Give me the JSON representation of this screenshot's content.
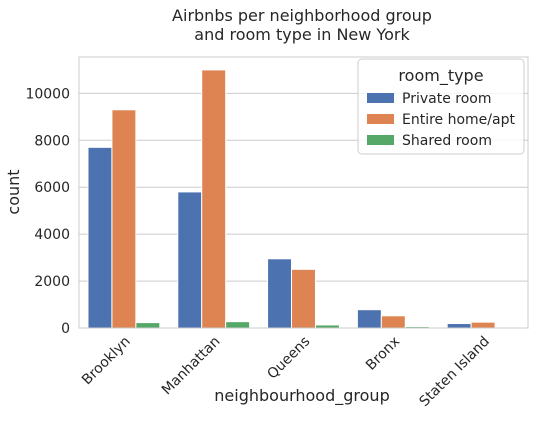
{
  "chart_data": {
    "type": "bar",
    "title": [
      "Airbnbs per neighborhood group",
      "and room type in New York"
    ],
    "xlabel": "neighbourhood_group",
    "ylabel": "count",
    "categories": [
      "Brooklyn",
      "Manhattan",
      "Queens",
      "Bronx",
      "Staten Island"
    ],
    "series": [
      {
        "name": "Private room",
        "values": [
          7700,
          5800,
          2950,
          780,
          190
        ],
        "color": "#4c72b0"
      },
      {
        "name": "Entire home/apt",
        "values": [
          9300,
          11000,
          2500,
          520,
          250
        ],
        "color": "#dd8452"
      },
      {
        "name": "Shared room",
        "values": [
          230,
          270,
          130,
          60,
          10
        ],
        "color": "#55a868"
      }
    ],
    "ylim": [
      0,
      11550
    ],
    "yticks": [
      0,
      2000,
      4000,
      6000,
      8000,
      10000
    ],
    "legend": {
      "title": "room_type",
      "placement": "top-right"
    },
    "grid": "horizontal",
    "background": "#ffffff",
    "gridColor": "#cccccc"
  }
}
